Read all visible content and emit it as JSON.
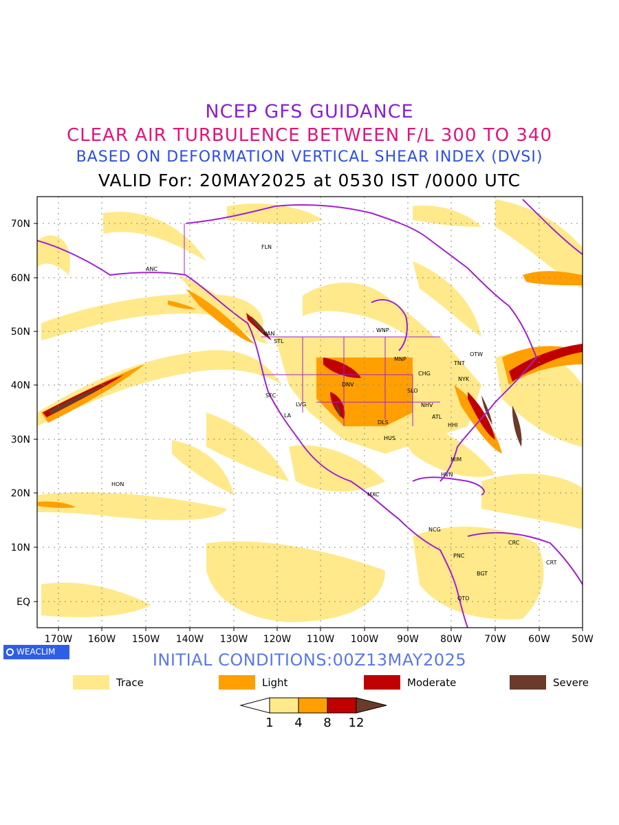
{
  "titles": {
    "line1": "NCEP GFS GUIDANCE",
    "line2": "CLEAR AIR TURBULENCE BETWEEN F/L 300 TO 340",
    "line3": "BASED ON DEFORMATION VERTICAL SHEAR INDEX (DVSI)",
    "line4": "VALID For: 20MAY2025 at 0530 IST /0000 UTC"
  },
  "axes": {
    "x_ticks": [
      "170W",
      "160W",
      "150W",
      "140W",
      "130W",
      "120W",
      "110W",
      "100W",
      "90W",
      "80W",
      "70W",
      "60W",
      "50W"
    ],
    "y_ticks": [
      "70N",
      "60N",
      "50N",
      "40N",
      "30N",
      "20N",
      "10N",
      "EQ"
    ]
  },
  "cities": [
    "FLN",
    "ANC",
    "VAN",
    "STL",
    "WNP",
    "MNP",
    "OTW",
    "TNT",
    "CHG",
    "NYK",
    "SFC",
    "DNV",
    "SLO",
    "LVG",
    "LA",
    "NHV",
    "ATL",
    "DLS",
    "HHI",
    "HUS",
    "MIM",
    "HVN",
    "HON",
    "MXC",
    "NCG",
    "CRC",
    "PNC",
    "CRT",
    "BGT",
    "QTO"
  ],
  "logo": "WEACLIM",
  "initial_conditions": "INITIAL CONDITIONS:00Z13MAY2025",
  "legend": [
    {
      "label": "Trace",
      "color": "#ffe98a"
    },
    {
      "label": "Light",
      "color": "#ff9f00"
    },
    {
      "label": "Moderate",
      "color": "#c00000"
    },
    {
      "label": "Severe",
      "color": "#6b3a2a"
    }
  ],
  "colorbar": {
    "levels": [
      "1",
      "4",
      "8",
      "12"
    ],
    "colors": [
      "#ffffff",
      "#ffe98a",
      "#ff9f00",
      "#c00000",
      "#6b3a2a"
    ]
  },
  "colors": {
    "coastline": "#a020d0",
    "trace": "#ffe98a",
    "light": "#ff9f00",
    "moderate": "#c00000",
    "severe": "#6b3a2a"
  }
}
